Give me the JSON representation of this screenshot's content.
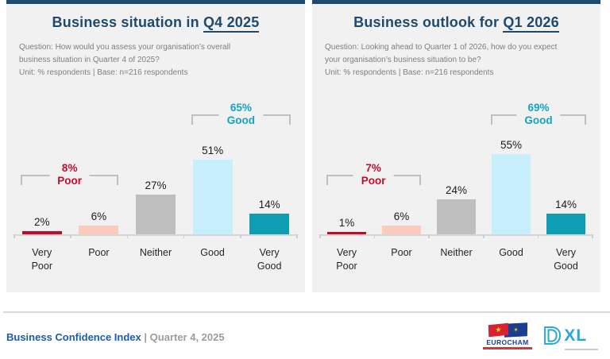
{
  "colors": {
    "navy": "#1d4a6e",
    "poor_label": "#c30b30",
    "good_label": "#14a3c0",
    "panel_bg": "#f1f1f1",
    "bracket_line": "#bfbfbf",
    "footer_blue": "#1a5dad",
    "footer_gray": "#9c9c9c"
  },
  "bar_colors": [
    "#c10b2b",
    "#fbcbbc",
    "#bfbfbf",
    "#c7effb",
    "#0f9db4"
  ],
  "chart_data": [
    {
      "type": "bar",
      "title": "Business situation in Q4 2025",
      "title_prefix": "Business situation in ",
      "title_highlight": "Q4 2025",
      "question": "Question: How would you assess your organisation’s overall\nbusiness situation in Quarter 4 of 2025?",
      "unit_line": "Unit: % respondents | Base: n=216 respondents",
      "categories": [
        "Very Poor",
        "Poor",
        "Neither",
        "Good",
        "Very Good"
      ],
      "tick_labels": [
        "Very\nPoor",
        "Poor",
        "Neither",
        "Good",
        "Very\nGood"
      ],
      "values": [
        2,
        6,
        27,
        51,
        14
      ],
      "labels": [
        "2%",
        "6%",
        "27%",
        "51%",
        "14%"
      ],
      "ylim": [
        0,
        60
      ],
      "grid": false,
      "legend": false,
      "annotations": [
        {
          "label": "8%",
          "sublabel": "Poor",
          "value": 8,
          "spans": [
            "Very Poor",
            "Poor"
          ]
        },
        {
          "label": "65%",
          "sublabel": "Good",
          "value": 65,
          "spans": [
            "Good",
            "Very Good"
          ]
        }
      ]
    },
    {
      "type": "bar",
      "title": "Business outlook for Q1 2026",
      "title_prefix": "Business outlook for ",
      "title_highlight": "Q1 2026",
      "question": "Question: Looking ahead to Quarter 1 of 2026, how do you expect\nyour organisation’s business situation to be?",
      "unit_line": "Unit: % respondents | Base: n=216 respondents",
      "categories": [
        "Very Poor",
        "Poor",
        "Neither",
        "Good",
        "Very Good"
      ],
      "tick_labels": [
        "Very\nPoor",
        "Poor",
        "Neither",
        "Good",
        "Very\nGood"
      ],
      "values": [
        1,
        6,
        24,
        55,
        14
      ],
      "labels": [
        "1%",
        "6%",
        "24%",
        "55%",
        "14%"
      ],
      "ylim": [
        0,
        60
      ],
      "grid": false,
      "legend": false,
      "annotations": [
        {
          "label": "7%",
          "sublabel": "Poor",
          "value": 7,
          "spans": [
            "Very Poor",
            "Poor"
          ]
        },
        {
          "label": "69%",
          "sublabel": "Good",
          "value": 69,
          "spans": [
            "Good",
            "Very Good"
          ]
        }
      ]
    }
  ],
  "footer": {
    "title": "Business Confidence Index",
    "divider": "|",
    "period": "Quarter 4, 2025"
  },
  "logos": {
    "eurocham": {
      "text": "EUROCHAM",
      "vn_star": "★",
      "eu_stars": "✶"
    },
    "dxl": {
      "monogram": "D",
      "text": "XL"
    }
  }
}
